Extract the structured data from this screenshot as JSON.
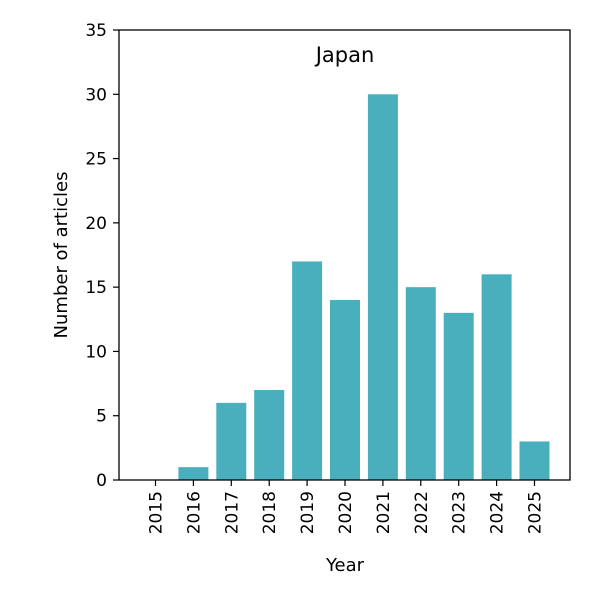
{
  "chart_data": {
    "type": "bar",
    "title": "Japan",
    "xlabel": "Year",
    "ylabel": "Number of articles",
    "categories": [
      "2015",
      "2016",
      "2017",
      "2018",
      "2019",
      "2020",
      "2021",
      "2022",
      "2023",
      "2024",
      "2025"
    ],
    "values": [
      0,
      1,
      6,
      7,
      17,
      14,
      30,
      15,
      13,
      16,
      3
    ],
    "ylim": [
      0,
      35
    ],
    "yticks": [
      0,
      5,
      10,
      15,
      20,
      25,
      30,
      35
    ],
    "grid": false,
    "bar_color": "#4aafbd"
  }
}
